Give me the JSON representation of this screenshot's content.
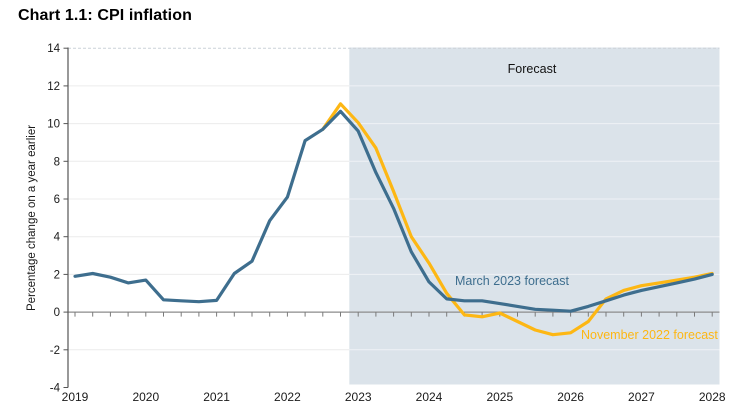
{
  "page": {
    "title": "Chart 1.1: CPI inflation"
  },
  "chart_data": {
    "type": "line",
    "title": "Chart 1.1: CPI inflation",
    "xlabel": "",
    "ylabel": "Percentage change on a year earlier",
    "ylim": [
      -4,
      14
    ],
    "yticks": [
      -4,
      -2,
      0,
      2,
      4,
      6,
      8,
      10,
      12,
      14
    ],
    "xtick_years": [
      "2019",
      "2020",
      "2021",
      "2022",
      "2023",
      "2024",
      "2025",
      "2026",
      "2027",
      "2028"
    ],
    "x_unit": "quarterly",
    "x_range": [
      "2019Q1",
      "2028Q1"
    ],
    "grid": "horizontal-faint",
    "legend_position": "inline-annotations",
    "forecast_region": {
      "label": "Forecast",
      "starts_at": "2023Q1",
      "boundary_quarter_index": 15.5,
      "shade_color": "#dbe3ea"
    },
    "series": [
      {
        "name": "November 2022 forecast",
        "color": "#fdb714",
        "start": "2022Q3",
        "start_index": 14,
        "values": [
          9.7,
          11.05,
          10.05,
          8.7,
          6.4,
          4.0,
          2.6,
          1.0,
          -0.15,
          -0.25,
          -0.05,
          -0.5,
          -0.95,
          -1.2,
          -1.1,
          -0.5,
          0.7,
          1.15,
          1.4,
          1.55,
          1.7,
          1.85,
          2.05
        ]
      },
      {
        "name": "March 2023 forecast",
        "color": "#3e6e8e",
        "start": "2019Q1",
        "start_index": 0,
        "values": [
          1.9,
          2.05,
          1.85,
          1.55,
          1.7,
          0.65,
          0.6,
          0.55,
          0.62,
          2.05,
          2.7,
          4.85,
          6.1,
          9.1,
          9.7,
          10.65,
          9.6,
          7.4,
          5.5,
          3.2,
          1.6,
          0.7,
          0.6,
          0.6,
          0.45,
          0.3,
          0.15,
          0.1,
          0.05,
          0.3,
          0.6,
          0.9,
          1.15,
          1.35,
          1.55,
          1.75,
          2.0
        ]
      }
    ]
  }
}
